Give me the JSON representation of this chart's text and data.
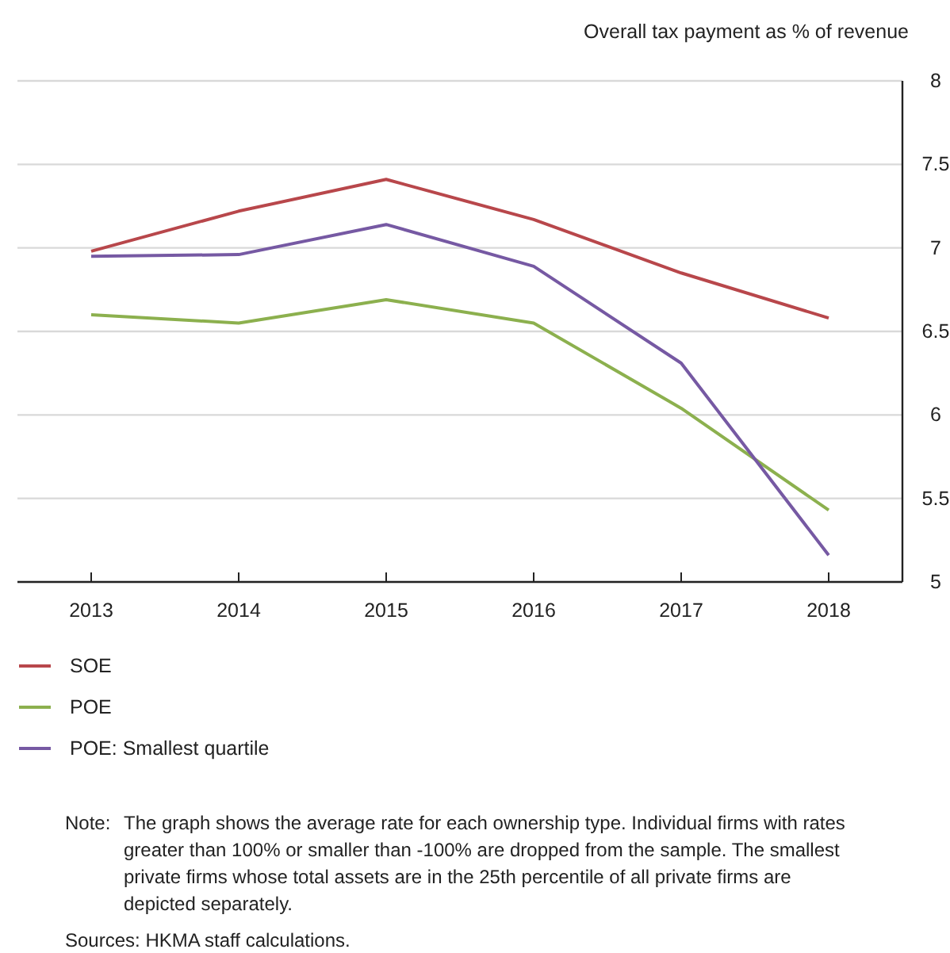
{
  "chart_data": {
    "type": "line",
    "ylabel": "Overall tax payment as % of revenue",
    "categories": [
      "2013",
      "2014",
      "2015",
      "2016",
      "2017",
      "2018"
    ],
    "series": [
      {
        "name": "SOE",
        "color": "#b8474b",
        "values": [
          6.98,
          7.22,
          7.41,
          7.17,
          6.85,
          6.58
        ]
      },
      {
        "name": "POE",
        "color": "#8cb04e",
        "values": [
          6.6,
          6.55,
          6.69,
          6.55,
          6.04,
          5.43
        ]
      },
      {
        "name": "POE: Smallest quartile",
        "color": "#7659a3",
        "values": [
          6.95,
          6.96,
          7.14,
          6.89,
          6.31,
          5.16
        ]
      }
    ],
    "ylim": [
      5,
      8
    ],
    "yticks": [
      5,
      5.5,
      6,
      6.5,
      7,
      7.5,
      8
    ],
    "grid": "y",
    "legend": "bottom",
    "marker": "none",
    "line_style": "solid",
    "annotations": [
      "Note:",
      "The graph shows the average rate for each ownership type.  Individual firms with rates greater than 100% or smaller than -100% are dropped from the sample.  The smallest private firms whose total assets are in the 25th percentile of all private firms are depicted separately.",
      "Sources: HKMA staff calculations."
    ]
  }
}
